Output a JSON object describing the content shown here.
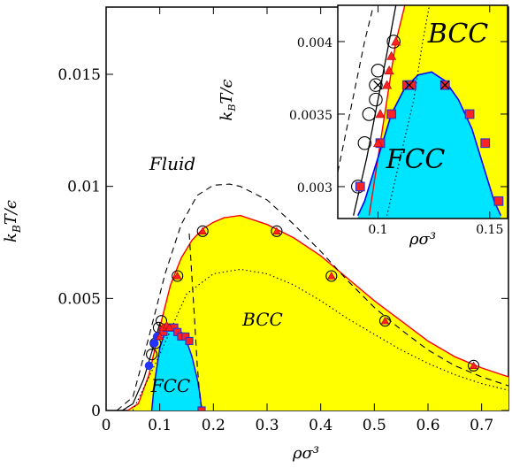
{
  "chart_data": [
    {
      "type": "phase-diagram",
      "xlabel": "ρσ³",
      "ylabel": "k_B T/ϵ",
      "xlim": [
        0,
        0.75
      ],
      "ylim": [
        0,
        0.018
      ],
      "xticks": [
        0,
        0.1,
        0.2,
        0.3,
        0.4,
        0.5,
        0.6,
        0.7
      ],
      "xtick_labels": [
        "0",
        "0.1",
        "0.2",
        "0.3",
        "0.4",
        "0.5",
        "0.6",
        "0.7"
      ],
      "yticks": [
        0,
        0.005,
        0.01,
        0.015
      ],
      "ytick_labels": [
        "0",
        "0.005",
        "0.01",
        "0.015"
      ],
      "regions": [
        {
          "label": "Fluid",
          "color": "#ffffff"
        },
        {
          "label": "BCC",
          "color": "#ffff00"
        },
        {
          "label": "FCC",
          "color": "#00e5ff"
        }
      ],
      "boundaries": {
        "fluid_bcc": {
          "color": "#ff0000",
          "x": [
            0.04,
            0.06,
            0.08,
            0.1,
            0.12,
            0.14,
            0.16,
            0.18,
            0.2,
            0.22,
            0.25,
            0.3,
            0.35,
            0.4,
            0.45,
            0.5,
            0.55,
            0.6,
            0.65,
            0.7,
            0.75
          ],
          "y": [
            0,
            0.0003,
            0.0016,
            0.0037,
            0.0056,
            0.0068,
            0.0076,
            0.0081,
            0.0084,
            0.0086,
            0.0087,
            0.0083,
            0.0077,
            0.0069,
            0.0059,
            0.0049,
            0.004,
            0.0031,
            0.0024,
            0.0019,
            0.0015
          ]
        },
        "bcc_fcc": {
          "color": "#0000ff",
          "x": [
            0.085,
            0.09,
            0.1,
            0.11,
            0.12,
            0.13,
            0.14,
            0.15,
            0.16,
            0.17,
            0.175,
            0.178
          ],
          "y": [
            0,
            0.0012,
            0.0028,
            0.0035,
            0.00375,
            0.0037,
            0.0035,
            0.0031,
            0.0024,
            0.0014,
            0.0007,
            0
          ]
        },
        "solid_left": {
          "color": "#000000",
          "x": [
            0.03,
            0.05,
            0.07,
            0.09,
            0.1
          ],
          "y": [
            0,
            0.0003,
            0.0014,
            0.003,
            0.0039
          ]
        }
      },
      "dashed_line": {
        "x": [
          0.02,
          0.05,
          0.08,
          0.11,
          0.14,
          0.17,
          0.2,
          0.23,
          0.25,
          0.3,
          0.35,
          0.4,
          0.45,
          0.5,
          0.55,
          0.6,
          0.65,
          0.7,
          0.75
        ],
        "y": [
          0,
          0.0006,
          0.0033,
          0.0061,
          0.0083,
          0.0096,
          0.01005,
          0.0101,
          0.01,
          0.0094,
          0.0083,
          0.0071,
          0.0058,
          0.0046,
          0.0036,
          0.0027,
          0.002,
          0.0015,
          0.0011
        ]
      },
      "dashed_vertical": {
        "x": [
          0.155,
          0.165,
          0.17,
          0.175,
          0.18
        ],
        "y": [
          0.0079,
          0.004,
          0.002,
          0.0005,
          0
        ]
      },
      "dotted_line": {
        "x": [
          0.05,
          0.1,
          0.15,
          0.2,
          0.25,
          0.3,
          0.35,
          0.4,
          0.45,
          0.5,
          0.55,
          0.6,
          0.65,
          0.7,
          0.75
        ],
        "y": [
          0,
          0.0025,
          0.0052,
          0.0061,
          0.0063,
          0.0061,
          0.0056,
          0.0049,
          0.0041,
          0.0034,
          0.0027,
          0.0021,
          0.0016,
          0.0012,
          0.0009
        ]
      },
      "points": {
        "open_circles": {
          "x": [
            0.085,
            0.092,
            0.098,
            0.103,
            0.133,
            0.18,
            0.318,
            0.42,
            0.52,
            0.685
          ],
          "y": [
            0.0025,
            0.003,
            0.0037,
            0.004,
            0.006,
            0.008,
            0.008,
            0.006,
            0.004,
            0.002
          ]
        },
        "red_triangles": {
          "x": [
            0.1,
            0.106,
            0.113,
            0.118,
            0.133,
            0.18,
            0.318,
            0.42,
            0.52,
            0.685
          ],
          "y": [
            0.0033,
            0.0037,
            0.0038,
            0.0037,
            0.006,
            0.008,
            0.008,
            0.006,
            0.004,
            0.002
          ]
        },
        "squares": {
          "x": [
            0.107,
            0.113,
            0.12,
            0.127,
            0.133,
            0.14,
            0.148,
            0.155,
            0.178
          ],
          "y": [
            0.0035,
            0.0037,
            0.0037,
            0.0037,
            0.0035,
            0.0033,
            0.0033,
            0.0031,
            0.0
          ]
        },
        "blue_circles": {
          "x": [
            0.08,
            0.09,
            0.095
          ],
          "y": [
            0.002,
            0.003,
            0.0033
          ]
        }
      }
    },
    {
      "type": "phase-diagram-inset",
      "xlabel": "ρσ³",
      "ylabel": "k_B T/ϵ",
      "xlim": [
        0.082,
        0.158
      ],
      "ylim": [
        0.00278,
        0.00425
      ],
      "xticks": [
        0.1,
        0.15
      ],
      "xtick_labels": [
        "0.1",
        "0.15"
      ],
      "yticks": [
        0.003,
        0.0035,
        0.004
      ],
      "ytick_labels": [
        "0.003",
        "0.0035",
        "0.004"
      ],
      "regions": [
        {
          "label": "BCC",
          "color": "#ffff00"
        },
        {
          "label": "FCC",
          "color": "#00e5ff"
        }
      ],
      "boundaries": {
        "fluid_bcc": {
          "x": [
            0.096,
            0.1,
            0.104,
            0.108,
            0.112
          ],
          "y": [
            0.0028,
            0.0032,
            0.0036,
            0.004,
            0.00425
          ]
        },
        "bcc_fcc": {
          "x": [
            0.091,
            0.094,
            0.1,
            0.106,
            0.112,
            0.118,
            0.124,
            0.13,
            0.136,
            0.142,
            0.148,
            0.152,
            0.155
          ],
          "y": [
            0.0028,
            0.0029,
            0.0032,
            0.0035,
            0.00368,
            0.00377,
            0.00379,
            0.00373,
            0.0036,
            0.0034,
            0.0031,
            0.0029,
            0.0028
          ]
        },
        "solid_left": {
          "x": [
            0.089,
            0.095,
            0.1,
            0.105,
            0.108
          ],
          "y": [
            0.0028,
            0.0032,
            0.0036,
            0.004,
            0.00425
          ]
        }
      },
      "dashed_line": {
        "x": [
          0.082,
          0.086,
          0.09,
          0.094,
          0.098
        ],
        "y": [
          0.0031,
          0.0034,
          0.0037,
          0.004,
          0.00425
        ]
      },
      "dotted_line": {
        "x": [
          0.104,
          0.11,
          0.116,
          0.12,
          0.123
        ],
        "y": [
          0.0028,
          0.0032,
          0.0036,
          0.004,
          0.00425
        ]
      },
      "points": {
        "open_circles": {
          "x": [
            0.091,
            0.094,
            0.096,
            0.099,
            0.099,
            0.1,
            0.107
          ],
          "y": [
            0.003,
            0.0033,
            0.0035,
            0.0036,
            0.0037,
            0.0038,
            0.004
          ]
        },
        "red_triangles": {
          "x": [
            0.1,
            0.101,
            0.104,
            0.105,
            0.106,
            0.108
          ],
          "y": [
            0.0033,
            0.0035,
            0.0037,
            0.0038,
            0.0039,
            0.004
          ]
        },
        "squares": {
          "x": [
            0.092,
            0.101,
            0.106,
            0.113,
            0.115,
            0.13,
            0.141,
            0.148,
            0.154
          ],
          "y": [
            0.003,
            0.0033,
            0.0035,
            0.0037,
            0.0037,
            0.0037,
            0.0035,
            0.0033,
            0.0029
          ]
        },
        "crosses": {
          "x": [
            0.1,
            0.114,
            0.13
          ],
          "y": [
            0.0037,
            0.0037,
            0.0037
          ]
        }
      }
    }
  ]
}
